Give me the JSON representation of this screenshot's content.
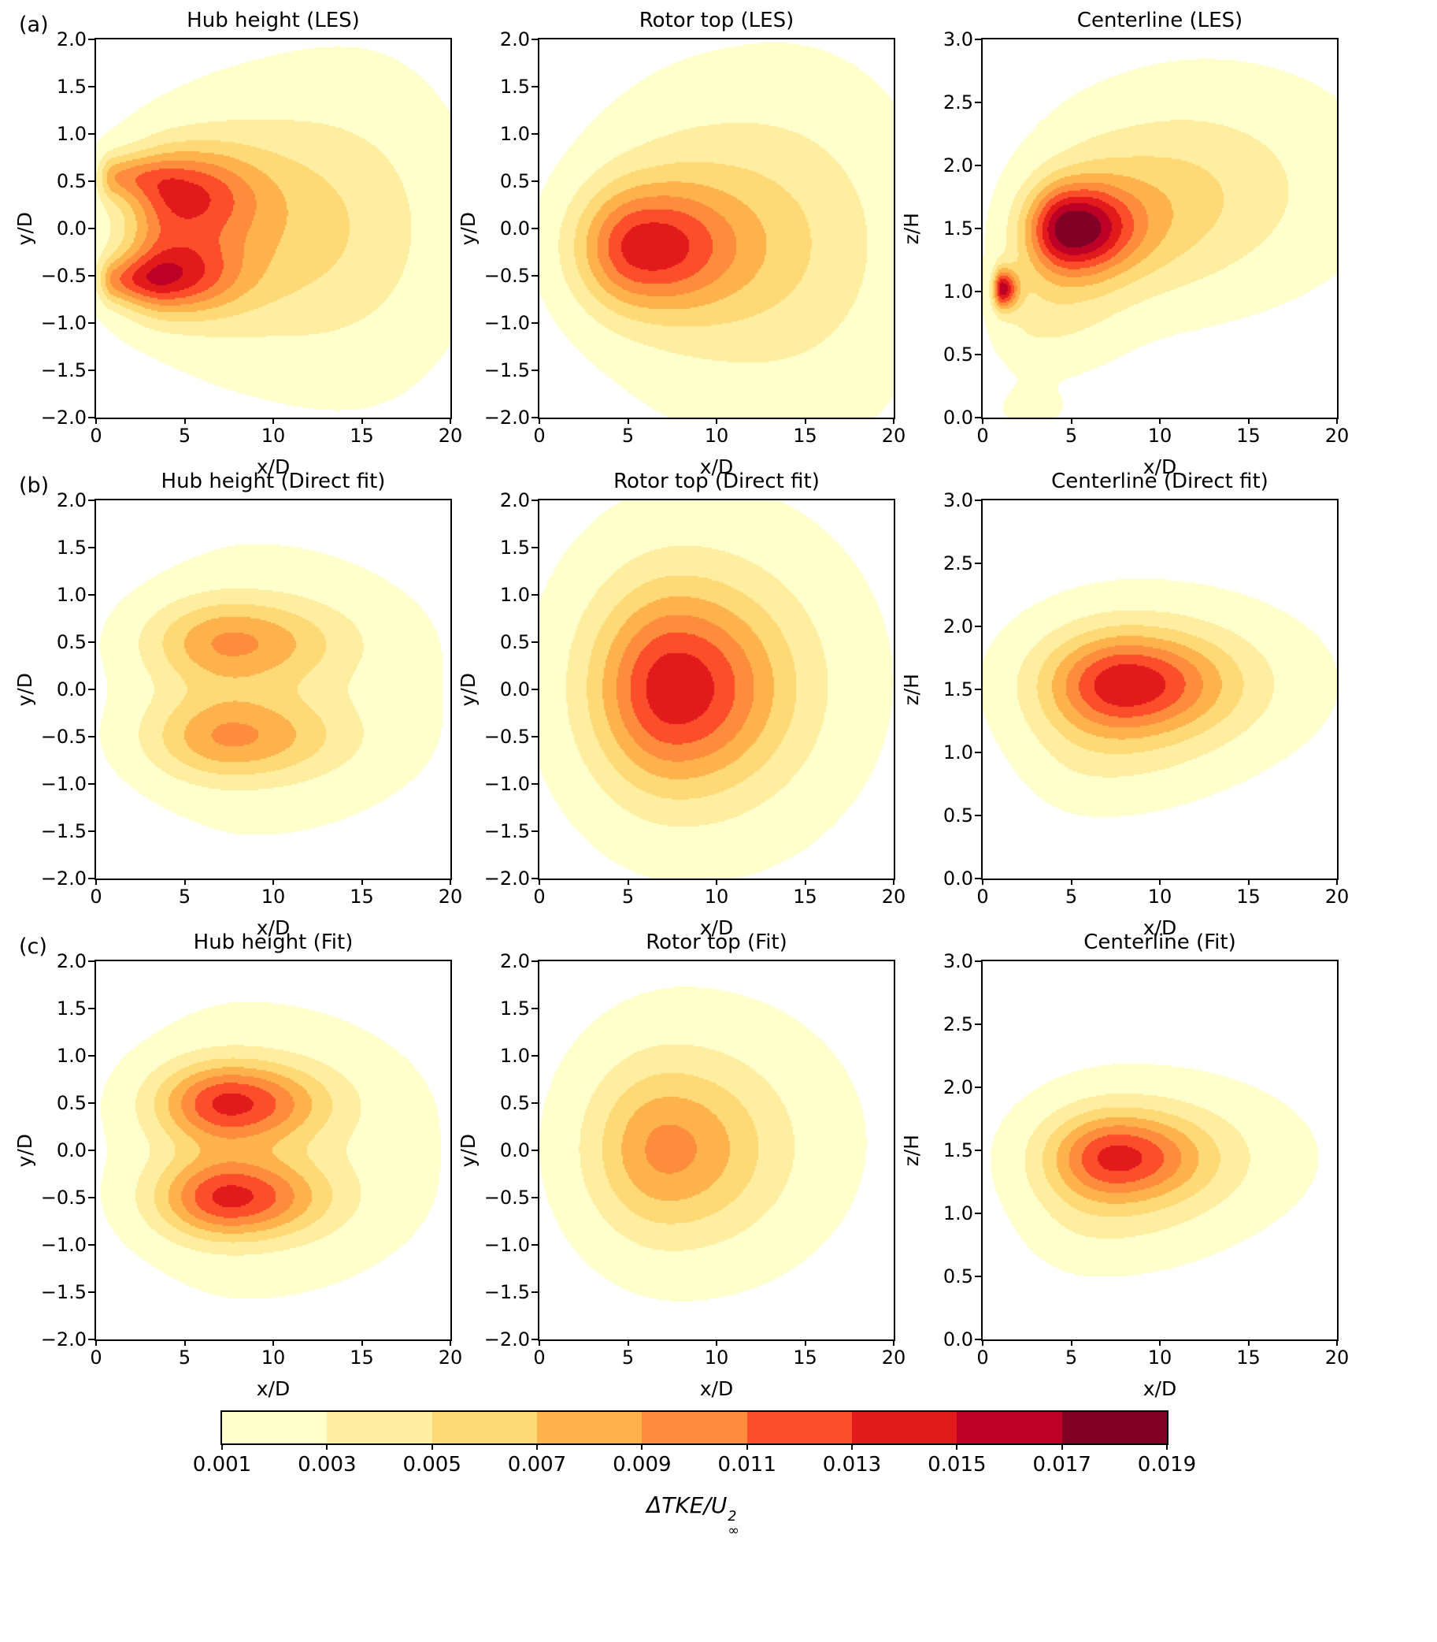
{
  "figure": {
    "background": "#ffffff",
    "row_labels": [
      "(a)",
      "(b)",
      "(c)"
    ]
  },
  "chart_data": {
    "type": "heatmap",
    "levels": [
      0.001,
      0.003,
      0.005,
      0.007,
      0.009,
      0.011,
      0.013,
      0.015,
      0.017,
      0.019
    ],
    "colors": [
      "#ffffcc",
      "#ffeda0",
      "#fed976",
      "#feb24c",
      "#fd8d3c",
      "#fc4e2a",
      "#e31a1c",
      "#bd0026",
      "#800026"
    ],
    "colorbar": {
      "tick_labels": [
        "0.001",
        "0.003",
        "0.005",
        "0.007",
        "0.009",
        "0.011",
        "0.013",
        "0.015",
        "0.017",
        "0.019"
      ],
      "label_base": "ΔTKE/U",
      "label_sup": "2",
      "label_sub": "∞"
    },
    "subplots": [
      {
        "title": "Hub height (LES)",
        "xlabel": "x/D",
        "ylabel": "y/D",
        "xlim": [
          0,
          20
        ],
        "ylim": [
          -2,
          2
        ],
        "xticks": [
          0,
          5,
          10,
          15,
          20
        ],
        "yticks": [
          -2,
          -1.5,
          -1,
          -0.5,
          0,
          0.5,
          1,
          1.5,
          2
        ],
        "field_model": [
          {
            "cx": 4.0,
            "cy": -0.5,
            "amp": 0.0105,
            "sxl": 1.8,
            "sxr": 2.8,
            "sy": 0.3
          },
          {
            "cx": 4.6,
            "cy": 0.35,
            "amp": 0.0095,
            "sxl": 2.0,
            "sxr": 3.0,
            "sy": 0.35
          },
          {
            "cx": 8.0,
            "cy": 0.0,
            "amp": 0.005,
            "sxl": 4.5,
            "sxr": 5.5,
            "sy": 0.85
          },
          {
            "cx": 15.0,
            "cy": 0.0,
            "amp": 0.0024,
            "sxl": 5.0,
            "sxr": 4.5,
            "sy": 1.3
          },
          {
            "cx": 1.0,
            "cy": -0.55,
            "amp": 0.006,
            "sxl": 0.6,
            "sxr": 2.0,
            "sy": 0.17
          },
          {
            "cx": 1.0,
            "cy": 0.55,
            "amp": 0.006,
            "sxl": 0.6,
            "sxr": 2.0,
            "sy": 0.17
          }
        ]
      },
      {
        "title": "Rotor top (LES)",
        "xlabel": "x/D",
        "ylabel": "y/D",
        "xlim": [
          0,
          20
        ],
        "ylim": [
          -2,
          2
        ],
        "xticks": [
          0,
          5,
          10,
          15,
          20
        ],
        "yticks": [
          -2,
          -1.5,
          -1,
          -0.5,
          0,
          0.5,
          1,
          1.5,
          2
        ],
        "field_model": [
          {
            "cx": 5.5,
            "cy": -0.2,
            "amp": 0.0105,
            "sxl": 2.4,
            "sxr": 3.6,
            "sy": 0.45
          },
          {
            "cx": 9.0,
            "cy": -0.1,
            "amp": 0.0045,
            "sxl": 4.5,
            "sxr": 6.0,
            "sy": 0.95
          },
          {
            "cx": 15.0,
            "cy": -0.3,
            "amp": 0.0022,
            "sxl": 5.5,
            "sxr": 5.0,
            "sy": 1.5
          }
        ]
      },
      {
        "title": "Centerline (LES)",
        "xlabel": "x/D",
        "ylabel": "z/H",
        "xlim": [
          0,
          20
        ],
        "ylim": [
          0,
          3
        ],
        "xticks": [
          0,
          5,
          10,
          15,
          20
        ],
        "yticks": [
          0,
          0.5,
          1,
          1.5,
          2,
          2.5,
          3
        ],
        "field_model": [
          {
            "cx": 4.8,
            "cy": 1.5,
            "amp": 0.014,
            "sxl": 1.6,
            "sxr": 2.4,
            "sy": 0.24
          },
          {
            "cx": 1.1,
            "cy": 1.02,
            "amp": 0.014,
            "sxl": 0.35,
            "sxr": 0.6,
            "sy": 0.11
          },
          {
            "cx": 7.0,
            "cy": 1.55,
            "amp": 0.005,
            "sxl": 3.0,
            "sxr": 5.0,
            "sy": 0.45,
            "slope": 0.015
          },
          {
            "cx": 13.0,
            "cy": 1.85,
            "amp": 0.003,
            "sxl": 6.0,
            "sxr": 6.5,
            "sy": 0.65
          },
          {
            "cx": 3.0,
            "cy": 0.85,
            "amp": 0.003,
            "sxl": 1.8,
            "sxr": 3.0,
            "sy": 0.35
          },
          {
            "cx": 2.5,
            "cy": 0.06,
            "amp": 0.0016,
            "sxl": 1.2,
            "sxr": 1.6,
            "sy": 0.12
          }
        ]
      },
      {
        "title": "Hub height (Direct fit)",
        "xlabel": "x/D",
        "ylabel": "y/D",
        "xlim": [
          0,
          20
        ],
        "ylim": [
          -2,
          2
        ],
        "xticks": [
          0,
          5,
          10,
          15,
          20
        ],
        "yticks": [
          -2,
          -1.5,
          -1,
          -0.5,
          0,
          0.5,
          1,
          1.5,
          2
        ],
        "field_model": [
          {
            "cx": 7.5,
            "cy": 0.5,
            "amp": 0.0075,
            "sxl": 3.2,
            "sxr": 4.2,
            "sy": 0.32
          },
          {
            "cx": 7.5,
            "cy": -0.5,
            "amp": 0.0075,
            "sxl": 3.2,
            "sxr": 4.2,
            "sy": 0.32
          },
          {
            "cx": 9.0,
            "cy": 0.0,
            "amp": 0.0022,
            "sxl": 5.0,
            "sxr": 8.0,
            "sy": 1.2
          }
        ]
      },
      {
        "title": "Rotor top (Direct fit)",
        "xlabel": "x/D",
        "ylabel": "y/D",
        "xlim": [
          0,
          20
        ],
        "ylim": [
          -2,
          2
        ],
        "xticks": [
          0,
          5,
          10,
          15,
          20
        ],
        "yticks": [
          -2,
          -1.5,
          -1,
          -0.5,
          0,
          0.5,
          1,
          1.5,
          2
        ],
        "field_model": [
          {
            "cx": 7.5,
            "cy": 0.0,
            "amp": 0.011,
            "sxl": 3.0,
            "sxr": 4.0,
            "sy": 0.7
          },
          {
            "cx": 9.0,
            "cy": 0.1,
            "amp": 0.0038,
            "sxl": 5.5,
            "sxr": 6.5,
            "sy": 1.25
          }
        ]
      },
      {
        "title": "Centerline (Direct fit)",
        "xlabel": "x/D",
        "ylabel": "z/H",
        "xlim": [
          0,
          20
        ],
        "ylim": [
          0,
          3
        ],
        "xticks": [
          0,
          5,
          10,
          15,
          20
        ],
        "yticks": [
          0,
          0.5,
          1,
          1.5,
          2,
          2.5,
          3
        ],
        "field_model": [
          {
            "cx": 8.0,
            "cy": 1.55,
            "amp": 0.0105,
            "sxl": 3.0,
            "sxr": 3.8,
            "sy": 0.27
          },
          {
            "cx": 9.0,
            "cy": 1.55,
            "amp": 0.004,
            "sxl": 5.0,
            "sxr": 6.5,
            "sy": 0.48
          },
          {
            "cx": 6.0,
            "cy": 1.0,
            "amp": 0.002,
            "sxl": 2.5,
            "sxr": 4.5,
            "sy": 0.35
          }
        ]
      },
      {
        "title": "Hub height (Fit)",
        "xlabel": "x/D",
        "ylabel": "y/D",
        "xlim": [
          0,
          20
        ],
        "ylim": [
          -2,
          2
        ],
        "xticks": [
          0,
          5,
          10,
          15,
          20
        ],
        "yticks": [
          -2,
          -1.5,
          -1,
          -0.5,
          0,
          0.5,
          1,
          1.5,
          2
        ],
        "field_model": [
          {
            "cx": 7.5,
            "cy": 0.5,
            "amp": 0.0115,
            "sxl": 2.8,
            "sxr": 3.6,
            "sy": 0.3
          },
          {
            "cx": 7.5,
            "cy": -0.5,
            "amp": 0.0115,
            "sxl": 2.8,
            "sxr": 3.6,
            "sy": 0.3
          },
          {
            "cx": 8.5,
            "cy": 0.0,
            "amp": 0.0025,
            "sxl": 5.0,
            "sxr": 8.0,
            "sy": 1.15
          }
        ]
      },
      {
        "title": "Rotor top (Fit)",
        "xlabel": "x/D",
        "ylabel": "y/D",
        "xlim": [
          0,
          20
        ],
        "ylim": [
          -2,
          2
        ],
        "xticks": [
          0,
          5,
          10,
          15,
          20
        ],
        "yticks": [
          -2,
          -1.5,
          -1,
          -0.5,
          0,
          0.5,
          1,
          1.5,
          2
        ],
        "field_model": [
          {
            "cx": 7.0,
            "cy": 0.0,
            "amp": 0.0068,
            "sxl": 2.8,
            "sxr": 3.8,
            "sy": 0.6
          },
          {
            "cx": 8.5,
            "cy": 0.1,
            "amp": 0.003,
            "sxl": 5.0,
            "sxr": 6.5,
            "sy": 1.05
          }
        ]
      },
      {
        "title": "Centerline (Fit)",
        "xlabel": "x/D",
        "ylabel": "z/H",
        "xlim": [
          0,
          20
        ],
        "ylim": [
          0,
          3
        ],
        "xticks": [
          0,
          5,
          10,
          15,
          20
        ],
        "yticks": [
          0,
          0.5,
          1,
          1.5,
          2,
          2.5,
          3
        ],
        "field_model": [
          {
            "cx": 7.5,
            "cy": 1.45,
            "amp": 0.01,
            "sxl": 2.6,
            "sxr": 3.4,
            "sy": 0.24
          },
          {
            "cx": 8.5,
            "cy": 1.45,
            "amp": 0.0035,
            "sxl": 4.5,
            "sxr": 6.5,
            "sy": 0.45
          },
          {
            "cx": 6.0,
            "cy": 0.95,
            "amp": 0.0018,
            "sxl": 2.5,
            "sxr": 4.5,
            "sy": 0.32
          }
        ]
      }
    ]
  }
}
